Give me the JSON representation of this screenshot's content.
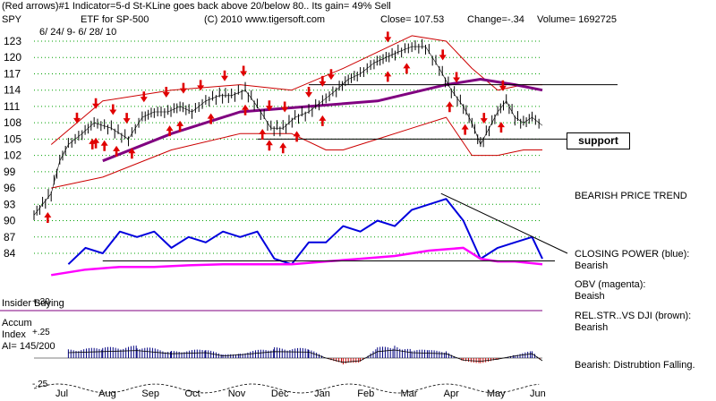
{
  "header": {
    "line1": "(Red arrows)#1 Indicator=5-d St-KLine goes back above 20/below 80..  Its gain= 49% Sell",
    "symbol": "SPY",
    "desc": "ETF for SP-500",
    "copyright": "(C) 2010 www.tigersoft.com",
    "close": "Close=  107.53",
    "change": "Change=-.34",
    "volume": "Volume= 1692725",
    "date_range": "6/ 24/ 9- 6/ 28/ 10"
  },
  "annotations": {
    "support": "support",
    "trend": "BEARISH PRICE TREND",
    "closing_power_1": "CLOSING POWER (blue):",
    "closing_power_2": "Bearish",
    "obv_1": "OBV (magenta):",
    "obv_2": "Beaish",
    "relstr_1": "REL.STR..VS DJI (brown):",
    "relstr_2": "Bearish",
    "distribution": "Bearish: Distrubtion Falling."
  },
  "indicator_labels": {
    "insider_buying": "Insider Buying",
    "insider_value": "+.30",
    "accum_title": "Accum",
    "accum_sub": "Index",
    "accum_ratio": "AI= 145/200",
    "accum_pos": "+.25",
    "accum_neg": "-.25"
  },
  "colors": {
    "price": "#000000",
    "bands": "#cc0000",
    "ma200": "#800080",
    "closing_power": "#0000dd",
    "obv": "#ff00ff",
    "relstr": "#990000",
    "accum_pos": "#000080",
    "accum_neg": "#cc0000",
    "grid": "#00a000"
  },
  "chart_data": {
    "type": "line",
    "ylim": [
      82,
      125
    ],
    "yticks": [
      84,
      87,
      90,
      93,
      96,
      99,
      102,
      105,
      108,
      111,
      114,
      117,
      120,
      123
    ],
    "months": [
      "Jul",
      "Aug",
      "Sep",
      "Oct",
      "Nov",
      "Dec",
      "Jan",
      "Feb",
      "Mar",
      "Apr",
      "May",
      "Jun"
    ],
    "price": {
      "x": [
        0,
        5,
        10,
        15,
        20,
        28,
        35,
        45,
        55,
        63,
        70,
        78,
        85,
        92,
        100,
        108,
        115,
        123,
        130,
        138,
        145,
        152,
        160,
        168,
        176,
        183,
        190,
        198,
        205,
        212,
        220,
        228,
        236,
        243,
        250,
        255,
        260,
        265,
        270,
        275,
        280,
        285,
        290,
        296
      ],
      "y": [
        91,
        93,
        95,
        101,
        104,
        106,
        108,
        107,
        105,
        109,
        110,
        110,
        111,
        110,
        112,
        113,
        113,
        114,
        111,
        107,
        107,
        109,
        110,
        112,
        114,
        116,
        117,
        119,
        120,
        121,
        122,
        122,
        118,
        114,
        111,
        108,
        104,
        107,
        110,
        112,
        109,
        108,
        109,
        107.5
      ]
    },
    "ma200": {
      "x": [
        40,
        80,
        120,
        160,
        200,
        240,
        260,
        280,
        296
      ],
      "y": [
        101,
        106,
        110,
        111,
        112,
        115,
        116,
        115,
        114
      ]
    },
    "upper_band": {
      "x": [
        10,
        40,
        80,
        120,
        150,
        180,
        200,
        220,
        240,
        255,
        270,
        285,
        296
      ],
      "y": [
        104,
        112,
        114,
        115,
        114,
        118,
        121,
        124,
        123,
        118,
        114,
        115,
        115
      ]
    },
    "lower_band": {
      "x": [
        10,
        40,
        80,
        120,
        150,
        170,
        180,
        200,
        220,
        240,
        255,
        270,
        285,
        296
      ],
      "y": [
        96,
        98,
        103,
        106,
        106,
        103,
        103,
        105,
        107,
        109,
        102,
        102,
        103,
        103
      ]
    },
    "closing_power": {
      "x": [
        20,
        30,
        40,
        50,
        60,
        70,
        80,
        90,
        100,
        110,
        120,
        130,
        140,
        150,
        160,
        170,
        180,
        190,
        200,
        210,
        220,
        230,
        240,
        250,
        260,
        270,
        280,
        290,
        296
      ],
      "y": [
        82,
        85,
        84,
        88,
        87,
        88,
        85,
        87,
        86,
        88,
        87,
        88,
        83,
        82,
        86,
        86,
        89,
        88,
        90,
        89,
        92,
        93,
        94,
        90,
        83,
        85,
        86,
        87,
        83
      ]
    },
    "obv": {
      "x": [
        10,
        30,
        50,
        70,
        90,
        110,
        130,
        150,
        170,
        190,
        210,
        230,
        250,
        260,
        270,
        280,
        296
      ],
      "y": [
        80,
        81,
        81.5,
        81.5,
        81.8,
        82,
        82,
        82,
        82.5,
        83,
        83.5,
        84.5,
        85,
        83,
        82.5,
        82.5,
        82
      ]
    },
    "sell_arrows_x": [
      25,
      36,
      46,
      54,
      64,
      77,
      87,
      97,
      111,
      122,
      137,
      146,
      160,
      168,
      173,
      206,
      238,
      246,
      262,
      273
    ],
    "buy_arrows_x": [
      8,
      34,
      36,
      41,
      48,
      57,
      79,
      85,
      103,
      123,
      133,
      137,
      145,
      153,
      168,
      206,
      217,
      242,
      251,
      272
    ],
    "accum_index": {
      "x": [
        20,
        40,
        60,
        80,
        100,
        110,
        120,
        140,
        160,
        170,
        180,
        190,
        200,
        210,
        220,
        230,
        240,
        250,
        260,
        270,
        280,
        290,
        296
      ],
      "y": [
        0.1,
        0.12,
        0.14,
        0.08,
        0.1,
        0.04,
        0.06,
        0.12,
        0.11,
        0.0,
        -0.08,
        -0.05,
        0.12,
        0.15,
        0.1,
        0.09,
        0.08,
        -0.04,
        -0.06,
        -0.02,
        0.04,
        0.08,
        -0.05
      ]
    },
    "support_level": 105,
    "resistance_level": 115
  }
}
